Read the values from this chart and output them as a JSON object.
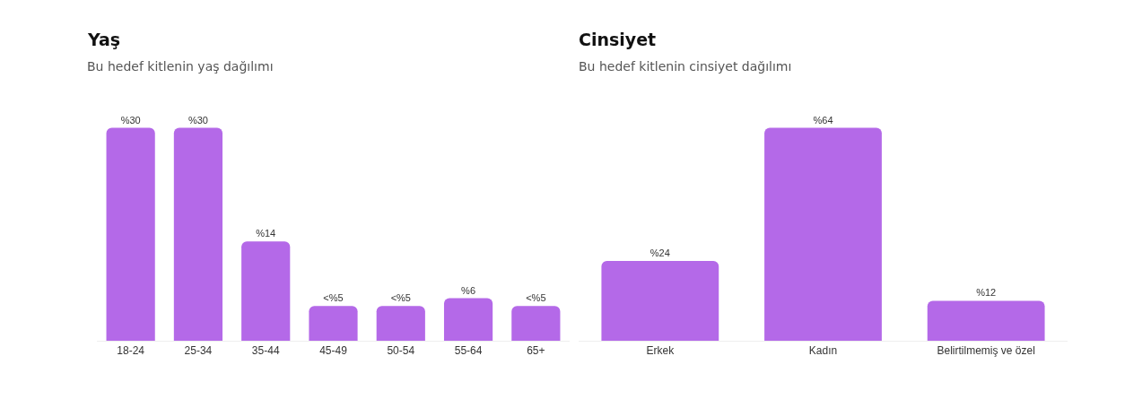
{
  "chart_data": [
    {
      "type": "bar",
      "title": "Yaş",
      "subtitle": "Bu hedef kitlenin yaş dağılımı",
      "categories": [
        "18-24",
        "25-34",
        "35-44",
        "45-49",
        "50-54",
        "55-64",
        "65+"
      ],
      "values": [
        30,
        30,
        14,
        4.9,
        4.9,
        6,
        4.9
      ],
      "value_labels": [
        "%30",
        "%30",
        "%14",
        "<%5",
        "<%5",
        "%6",
        "<%5"
      ],
      "color": "#b469e8"
    },
    {
      "type": "bar",
      "title": "Cinsiyet",
      "subtitle": "Bu hedef kitlenin cinsiyet dağılımı",
      "categories": [
        "Erkek",
        "Kadın",
        "Belirtilmemiş ve özel"
      ],
      "values": [
        24,
        64,
        12
      ],
      "value_labels": [
        "%24",
        "%64",
        "%12"
      ],
      "color": "#b469e8"
    }
  ]
}
